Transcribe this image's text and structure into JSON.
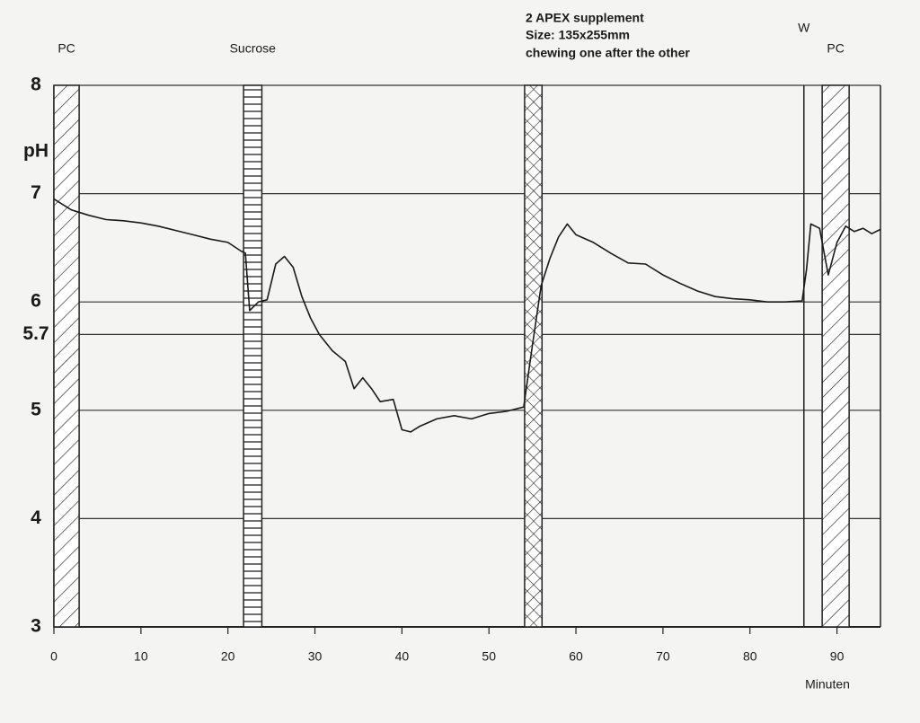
{
  "chart_data": {
    "type": "line",
    "annotation": [
      "2 APEX supplement",
      "Size: 135x255mm",
      "chewing one after the other"
    ],
    "ylabel": "pH",
    "xlabel": "Minuten",
    "x": [
      0,
      2,
      4,
      6,
      8,
      10,
      12,
      14,
      16,
      18,
      20,
      21.5,
      22,
      22.5,
      23.5,
      24.5,
      25.5,
      26.5,
      27.5,
      28.5,
      29.5,
      30.5,
      32,
      33.5,
      34.5,
      35.5,
      36.5,
      37.5,
      39,
      40,
      41,
      42,
      44,
      46,
      48,
      50,
      52,
      54,
      55,
      56,
      57,
      58,
      59,
      60,
      62,
      64,
      66,
      68,
      70,
      72,
      74,
      76,
      78,
      80,
      82,
      84,
      86,
      86.5,
      87,
      88,
      89,
      90,
      91,
      92,
      93,
      94,
      95
    ],
    "values": [
      6.95,
      6.85,
      6.8,
      6.76,
      6.75,
      6.73,
      6.7,
      6.66,
      6.62,
      6.58,
      6.55,
      6.47,
      6.45,
      5.92,
      6.0,
      6.02,
      6.35,
      6.42,
      6.32,
      6.05,
      5.85,
      5.7,
      5.55,
      5.45,
      5.2,
      5.3,
      5.2,
      5.08,
      5.1,
      4.82,
      4.8,
      4.85,
      4.92,
      4.95,
      4.92,
      4.97,
      4.99,
      5.03,
      5.6,
      6.15,
      6.4,
      6.6,
      6.72,
      6.62,
      6.55,
      6.45,
      6.36,
      6.35,
      6.25,
      6.17,
      6.1,
      6.05,
      6.03,
      6.02,
      6.0,
      6.0,
      6.01,
      6.3,
      6.72,
      6.68,
      6.25,
      6.55,
      6.7,
      6.65,
      6.68,
      6.63,
      6.67
    ],
    "color": "#1a1a1a",
    "bands": [
      {
        "label": "PC",
        "start": 0,
        "end": 2.9,
        "pattern": "diagonal"
      },
      {
        "label": "Sucrose",
        "start": 21.8,
        "end": 23.9,
        "pattern": "horizontal"
      },
      {
        "start": 54.1,
        "end": 56.1,
        "pattern": "cross"
      },
      {
        "label": "PC",
        "start": 88.3,
        "end": 91.4,
        "pattern": "diagonal"
      }
    ],
    "markers": [
      {
        "label": "W",
        "x": 86.2
      }
    ],
    "xlim": [
      0,
      95
    ],
    "ylim": [
      3,
      8
    ],
    "xticks": [
      0,
      10,
      20,
      30,
      40,
      50,
      60,
      70,
      80,
      90
    ],
    "yticks": [
      3,
      4,
      5,
      5.7,
      6,
      7,
      8
    ],
    "grid": true
  }
}
